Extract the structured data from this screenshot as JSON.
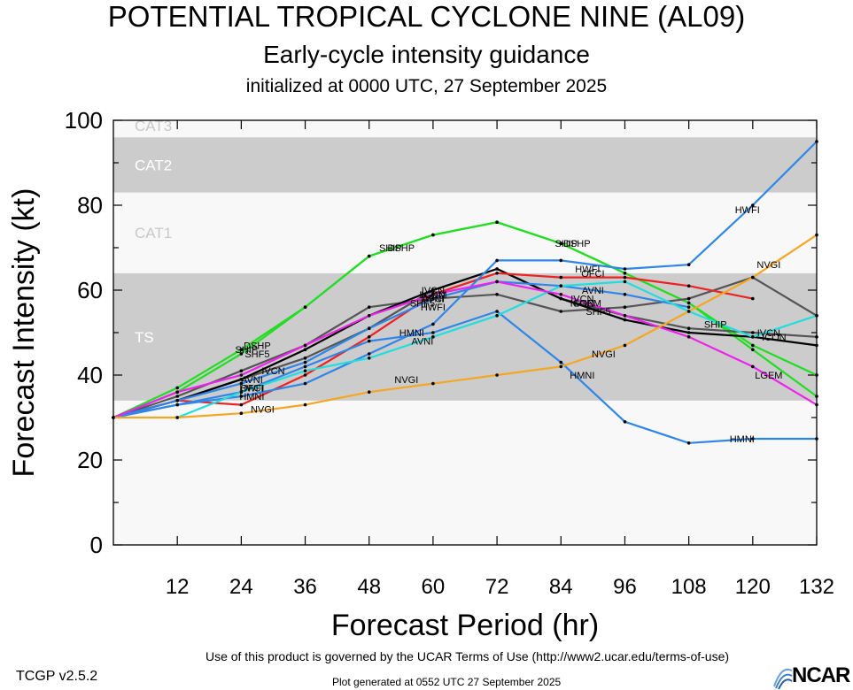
{
  "header": {
    "title": "POTENTIAL TROPICAL CYCLONE NINE (AL09)",
    "subtitle": "Early-cycle intensity guidance",
    "init_line": "initialized at 0000 UTC, 27 September 2025"
  },
  "footer": {
    "version": "TCGP v2.5.2",
    "terms": "Use of this product is governed by the UCAR Terms of Use (http://www2.ucar.edu/terms-of-use)",
    "generated": "Plot generated at 0552 UTC   27 September 2025",
    "logo_text": "NCAR"
  },
  "chart_data": {
    "type": "line",
    "xlabel": "Forecast Period (hr)",
    "ylabel": "Forecast Intensity (kt)",
    "xlim": [
      0,
      132
    ],
    "ylim": [
      0,
      100
    ],
    "xticks": [
      12,
      24,
      36,
      48,
      60,
      72,
      84,
      96,
      108,
      120,
      132
    ],
    "yticks": [
      0,
      20,
      40,
      60,
      80,
      100
    ],
    "bands": [
      {
        "label": "TS",
        "from": 34,
        "to": 64,
        "color": "#cccccc"
      },
      {
        "label": "CAT1",
        "from": 64,
        "to": 83,
        "color": "#f8f8f8"
      },
      {
        "label": "CAT2",
        "from": 83,
        "to": 96,
        "color": "#cccccc"
      },
      {
        "label": "CAT3",
        "from": 96,
        "to": 100,
        "color": "#f8f8f8"
      }
    ],
    "series": [
      {
        "name": "DSHP",
        "color": "#22dd22",
        "x": [
          0,
          12,
          24,
          36,
          48,
          60,
          72,
          84,
          96,
          108,
          120,
          132
        ],
        "y": [
          30,
          37,
          46,
          56,
          68,
          73,
          76,
          71,
          64,
          57,
          47,
          40
        ],
        "label_at": [
          [
            27,
            47
          ],
          [
            54,
            70
          ],
          [
            87,
            71
          ]
        ]
      },
      {
        "name": "SHIP",
        "color": "#22dd22",
        "x": [
          0,
          12,
          24,
          36,
          48,
          60,
          72,
          84,
          96,
          108,
          120,
          132
        ],
        "y": [
          30,
          36,
          45,
          56,
          68,
          73,
          76,
          71,
          64,
          57,
          46,
          35
        ],
        "label_at": [
          [
            25,
            46
          ],
          [
            52,
            70
          ],
          [
            85,
            71
          ],
          [
            113,
            52
          ]
        ]
      },
      {
        "name": "SHF5",
        "color": "#555555",
        "x": [
          0,
          12,
          24,
          36,
          48,
          60,
          72,
          84,
          96,
          108,
          120,
          132
        ],
        "y": [
          30,
          35,
          41,
          47,
          56,
          58,
          59,
          55,
          56,
          58,
          63,
          54
        ],
        "label_at": [
          [
            27,
            45
          ],
          [
            58,
            57
          ],
          [
            91,
            55
          ]
        ]
      },
      {
        "name": "IVCN",
        "color": "#555555",
        "x": [
          0,
          12,
          24,
          36,
          48,
          60,
          72,
          84,
          96,
          108,
          120,
          132
        ],
        "y": [
          30,
          34,
          39,
          44,
          51,
          60,
          65,
          58,
          54,
          51,
          50,
          49
        ],
        "label_at": [
          [
            30,
            41
          ],
          [
            60,
            60
          ],
          [
            88,
            58
          ],
          [
            123,
            50
          ]
        ]
      },
      {
        "name": "ICON",
        "color": "#000000",
        "x": [
          0,
          12,
          24,
          36,
          48,
          60,
          72,
          84,
          96,
          108,
          120,
          132
        ],
        "y": [
          30,
          34,
          39,
          46,
          54,
          60,
          65,
          58,
          53,
          50,
          49,
          47
        ],
        "label_at": [
          [
            60,
            59
          ],
          [
            88,
            57
          ],
          [
            124,
            49
          ]
        ]
      },
      {
        "name": "OFCI",
        "color": "#ee2222",
        "x": [
          0,
          12,
          24,
          36,
          48,
          60,
          72,
          84,
          96,
          108,
          120
        ],
        "y": [
          30,
          34,
          33,
          40,
          49,
          59,
          64,
          63,
          63,
          61,
          58
        ],
        "label_at": [
          [
            26,
            37
          ],
          [
            60,
            58
          ],
          [
            90,
            64
          ]
        ]
      },
      {
        "name": "AVNI",
        "color": "#2f86e8",
        "x": [
          0,
          12,
          24,
          36,
          48,
          60,
          72,
          84,
          96,
          108
        ],
        "y": [
          30,
          34,
          38,
          43,
          51,
          58,
          62,
          61,
          59,
          56
        ],
        "label_at": [
          [
            26,
            39
          ],
          [
            60,
            58
          ],
          [
            90,
            60
          ]
        ]
      },
      {
        "name": "HWFI",
        "color": "#2f86e8",
        "x": [
          0,
          12,
          24,
          36,
          48,
          60,
          72,
          84,
          96,
          108,
          120,
          132
        ],
        "y": [
          30,
          33,
          35,
          38,
          45,
          52,
          67,
          67,
          65,
          66,
          80,
          95
        ],
        "label_at": [
          [
            26,
            37
          ],
          [
            60,
            56
          ],
          [
            89,
            65
          ],
          [
            119,
            79
          ]
        ]
      },
      {
        "name": "HMNI",
        "color": "#2f86e8",
        "x": [
          0,
          12,
          24,
          36,
          48,
          60,
          72,
          84,
          96,
          108,
          120,
          132
        ],
        "y": [
          30,
          33,
          36,
          42,
          48,
          50,
          55,
          43,
          29,
          24,
          25,
          25
        ],
        "label_at": [
          [
            26,
            35
          ],
          [
            56,
            50
          ],
          [
            88,
            40
          ],
          [
            118,
            25
          ]
        ]
      },
      {
        "name": "AVNI",
        "color": "#22dddd",
        "x": [
          0,
          12,
          24,
          36,
          48,
          60,
          72,
          84,
          96,
          108,
          120,
          132
        ],
        "y": [
          30,
          30,
          36,
          41,
          44,
          49,
          54,
          61,
          62,
          55,
          49,
          54
        ],
        "label_at": [
          [
            58,
            48
          ]
        ]
      },
      {
        "name": "LGEM",
        "color": "#ee22ee",
        "x": [
          0,
          12,
          24,
          36,
          48,
          60,
          72,
          84,
          96,
          108,
          120,
          132
        ],
        "y": [
          30,
          36,
          40,
          47,
          54,
          59,
          62,
          59,
          54,
          49,
          42,
          33
        ],
        "label_at": [
          [
            60,
            59
          ],
          [
            89,
            57
          ],
          [
            123,
            40
          ]
        ]
      },
      {
        "name": "NVGI",
        "color": "#f5a623",
        "x": [
          0,
          12,
          24,
          36,
          48,
          60,
          72,
          84,
          96,
          108,
          120,
          132
        ],
        "y": [
          30,
          30,
          31,
          33,
          36,
          38,
          40,
          42,
          47,
          55,
          63,
          73
        ],
        "label_at": [
          [
            28,
            32
          ],
          [
            55,
            39
          ],
          [
            92,
            45
          ],
          [
            123,
            66
          ]
        ]
      }
    ]
  }
}
